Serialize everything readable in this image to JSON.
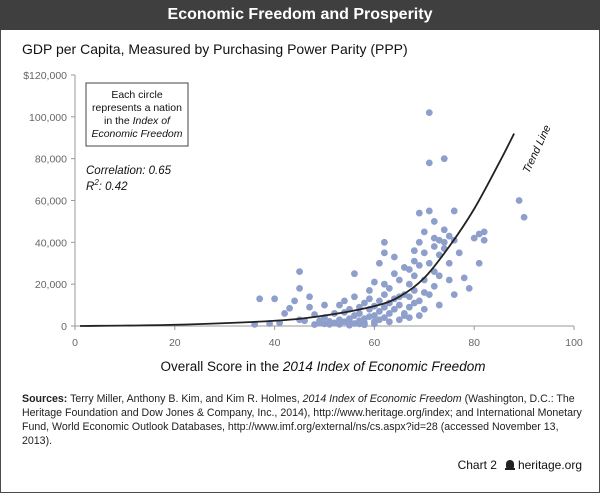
{
  "header": {
    "title": "Economic Freedom and Prosperity",
    "subtitle": "GDP per Capita, Measured by Purchasing Power Parity (PPP)"
  },
  "annotation": {
    "box_line1": "Each circle",
    "box_line2": "represents a nation",
    "box_line3": "in the",
    "box_line3_italic": "Index of",
    "box_line4_italic": "Economic Freedom",
    "correlation": "Correlation: 0.65",
    "r2_prefix": "R",
    "r2_sup": "2",
    "r2_suffix": ": 0.42",
    "trend_label": "Trend Line"
  },
  "xlabel_prefix": "Overall Score in the ",
  "xlabel_italic": "2014 Index of Economic Freedom",
  "sources": {
    "label": "Sources:",
    "text1": " Terry Miller, Anthony B. Kim, and Kim R. Holmes, ",
    "italic": "2014 Index of Economic Freedom",
    "text2": " (Washington, D.C.: The Heritage Foundation and Dow Jones & Company, Inc., 2014), http://www.heritage.org/index; and International Monetary Fund, World Economic Outlook Databases, http://www.imf.org/external/ns/cs.aspx?id=28 (accessed November 13, 2013)."
  },
  "footer": {
    "chart_label": "Chart 2",
    "site": "heritage.org"
  },
  "colors": {
    "point": "#8e9fcc",
    "trend": "#222222",
    "axis": "#999999",
    "title_bg": "#3f3f3f"
  },
  "chart_data": {
    "type": "scatter",
    "title": "Economic Freedom and Prosperity",
    "subtitle": "GDP per Capita, Measured by Purchasing Power Parity (PPP)",
    "xlabel": "Overall Score in the 2014 Index of Economic Freedom",
    "ylabel": "",
    "xlim": [
      0,
      100
    ],
    "ylim": [
      0,
      120000
    ],
    "x_ticks": [
      0,
      20,
      40,
      60,
      80,
      100
    ],
    "y_ticks": [
      0,
      20000,
      40000,
      60000,
      80000,
      100000,
      120000
    ],
    "y_tick_labels": [
      "0",
      "20,000",
      "40,000",
      "60,000",
      "80,000",
      "100,000",
      "$120,000"
    ],
    "grid": false,
    "correlation": 0.65,
    "r_squared": 0.42,
    "trend_line": {
      "label": "Trend Line",
      "points": [
        [
          1,
          0
        ],
        [
          20,
          600
        ],
        [
          40,
          2500
        ],
        [
          50,
          5000
        ],
        [
          60,
          9500
        ],
        [
          65,
          14000
        ],
        [
          70,
          23000
        ],
        [
          75,
          38000
        ],
        [
          80,
          56000
        ],
        [
          85,
          78000
        ],
        [
          88,
          92000
        ]
      ]
    },
    "points": [
      [
        36,
        800
      ],
      [
        37,
        13000
      ],
      [
        39,
        1200
      ],
      [
        40,
        13000
      ],
      [
        41,
        1500
      ],
      [
        42,
        6000
      ],
      [
        43,
        8500
      ],
      [
        44,
        12000
      ],
      [
        45,
        26000
      ],
      [
        45,
        18000
      ],
      [
        45,
        3000
      ],
      [
        46,
        2500
      ],
      [
        47,
        9000
      ],
      [
        47,
        14000
      ],
      [
        48,
        700
      ],
      [
        48,
        5500
      ],
      [
        49,
        1500
      ],
      [
        49,
        2500
      ],
      [
        50,
        10000
      ],
      [
        50,
        4000
      ],
      [
        50,
        1000
      ],
      [
        51,
        800
      ],
      [
        51,
        2200
      ],
      [
        52,
        6000
      ],
      [
        52,
        1500
      ],
      [
        53,
        10000
      ],
      [
        53,
        3000
      ],
      [
        53,
        800
      ],
      [
        54,
        2000
      ],
      [
        54,
        6500
      ],
      [
        54,
        12000
      ],
      [
        55,
        400
      ],
      [
        55,
        1800
      ],
      [
        55,
        3500
      ],
      [
        55,
        8000
      ],
      [
        56,
        1200
      ],
      [
        56,
        14000
      ],
      [
        56,
        25000
      ],
      [
        56,
        5000
      ],
      [
        57,
        1000
      ],
      [
        57,
        2500
      ],
      [
        57,
        9000
      ],
      [
        57,
        6000
      ],
      [
        58,
        11000
      ],
      [
        58,
        3500
      ],
      [
        58,
        1500
      ],
      [
        58,
        600
      ],
      [
        59,
        4500
      ],
      [
        59,
        8000
      ],
      [
        59,
        13000
      ],
      [
        59,
        17000
      ],
      [
        60,
        2000
      ],
      [
        60,
        5000
      ],
      [
        60,
        9500
      ],
      [
        60,
        21000
      ],
      [
        60,
        1000
      ],
      [
        61,
        3000
      ],
      [
        61,
        12000
      ],
      [
        61,
        7000
      ],
      [
        61,
        30000
      ],
      [
        62,
        35000
      ],
      [
        62,
        4000
      ],
      [
        62,
        15000
      ],
      [
        62,
        9000
      ],
      [
        62,
        40000
      ],
      [
        62,
        20000
      ],
      [
        63,
        2000
      ],
      [
        63,
        6000
      ],
      [
        63,
        11000
      ],
      [
        63,
        18000
      ],
      [
        64,
        25000
      ],
      [
        64,
        13000
      ],
      [
        64,
        8000
      ],
      [
        64,
        33000
      ],
      [
        65,
        3000
      ],
      [
        65,
        14000
      ],
      [
        65,
        10000
      ],
      [
        65,
        22000
      ],
      [
        66,
        5000
      ],
      [
        66,
        15000
      ],
      [
        66,
        28000
      ],
      [
        66,
        6000
      ],
      [
        67,
        9000
      ],
      [
        67,
        27000
      ],
      [
        67,
        14000
      ],
      [
        67,
        20000
      ],
      [
        67,
        4000
      ],
      [
        68,
        11000
      ],
      [
        68,
        24000
      ],
      [
        68,
        31000
      ],
      [
        68,
        36000
      ],
      [
        68,
        17000
      ],
      [
        69,
        12000
      ],
      [
        69,
        40000
      ],
      [
        69,
        29000
      ],
      [
        69,
        54000
      ],
      [
        69,
        5000
      ],
      [
        70,
        8000
      ],
      [
        70,
        16000
      ],
      [
        70,
        22000
      ],
      [
        70,
        35000
      ],
      [
        70,
        45000
      ],
      [
        71,
        102000
      ],
      [
        71,
        78000
      ],
      [
        71,
        55000
      ],
      [
        71,
        15000
      ],
      [
        71,
        30000
      ],
      [
        72,
        26000
      ],
      [
        72,
        38000
      ],
      [
        72,
        42000
      ],
      [
        72,
        19000
      ],
      [
        72,
        50000
      ],
      [
        73,
        34000
      ],
      [
        73,
        41000
      ],
      [
        73,
        10000
      ],
      [
        73,
        24000
      ],
      [
        74,
        80000
      ],
      [
        74,
        40000
      ],
      [
        74,
        37000
      ],
      [
        74,
        46000
      ],
      [
        75,
        43000
      ],
      [
        75,
        30000
      ],
      [
        75,
        22000
      ],
      [
        76,
        55000
      ],
      [
        76,
        41000
      ],
      [
        76,
        15000
      ],
      [
        77,
        35000
      ],
      [
        78,
        23000
      ],
      [
        79,
        18000
      ],
      [
        80,
        42000
      ],
      [
        81,
        30000
      ],
      [
        81,
        44000
      ],
      [
        82,
        45000
      ],
      [
        82,
        41000
      ],
      [
        89,
        60000
      ],
      [
        90,
        52000
      ]
    ]
  }
}
